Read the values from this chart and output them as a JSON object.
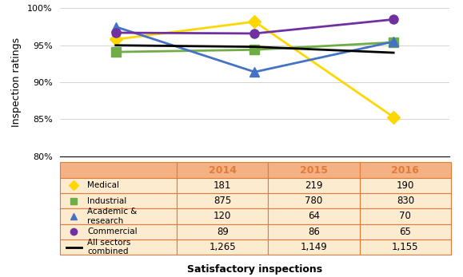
{
  "years": [
    2014,
    2015,
    2016
  ],
  "series": [
    {
      "label": "Medical",
      "color": "#FFD700",
      "marker": "D",
      "markersize": 8,
      "values": [
        95.8,
        98.2,
        85.3
      ],
      "counts": [
        181,
        219,
        190
      ]
    },
    {
      "label": "Industrial",
      "color": "#70AD47",
      "marker": "s",
      "markersize": 8,
      "values": [
        94.1,
        94.4,
        95.4
      ],
      "counts": [
        875,
        780,
        830
      ]
    },
    {
      "label": "Academic &\nresearch",
      "color": "#4472C4",
      "marker": "^",
      "markersize": 9,
      "values": [
        97.5,
        91.4,
        95.5
      ],
      "counts": [
        120,
        64,
        70
      ]
    },
    {
      "label": "Commercial",
      "color": "#7030A0",
      "marker": "o",
      "markersize": 8,
      "values": [
        96.7,
        96.6,
        98.5
      ],
      "counts": [
        89,
        86,
        65
      ]
    },
    {
      "label": "All sectors\ncombined",
      "color": "#000000",
      "marker": "None",
      "markersize": 0,
      "values": [
        95.0,
        94.8,
        94.0
      ],
      "counts": [
        1265,
        1149,
        1155
      ]
    }
  ],
  "ylim": [
    80,
    100
  ],
  "yticks": [
    80,
    85,
    90,
    95,
    100
  ],
  "ylabel": "Inspection ratings",
  "xlabel": "Satisfactory inspections",
  "table_header_color": "#F4B183",
  "table_row_color": "#FDEBD0",
  "table_border_color": "#E07B39",
  "table_year_color": "#E07B39",
  "fig_bg_color": "#FFFFFF",
  "linewidth": 2.0
}
